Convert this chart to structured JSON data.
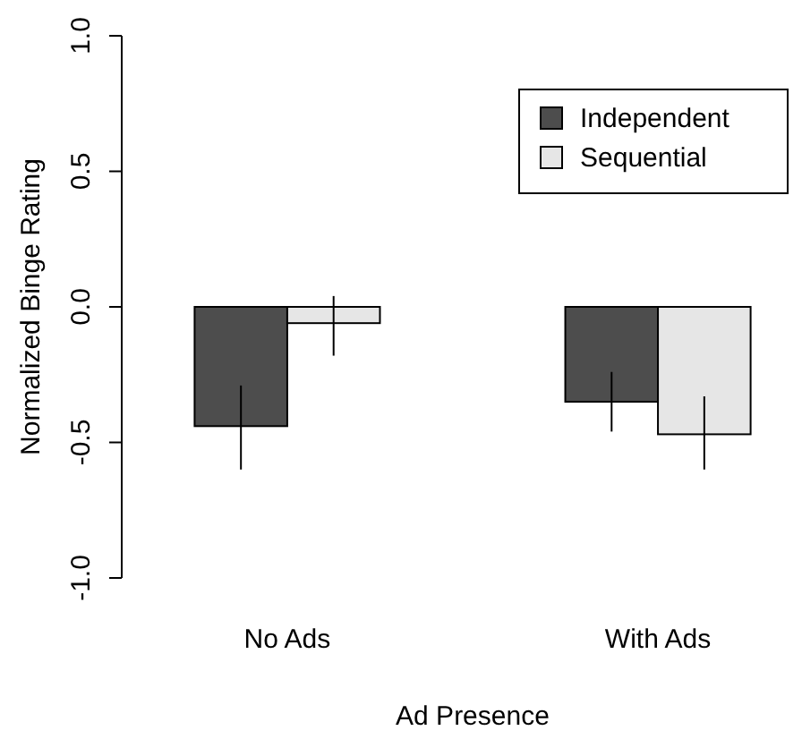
{
  "chart_data": {
    "type": "bar",
    "xlabel": "Ad Presence",
    "ylabel": "Normalized Binge Rating",
    "categories": [
      "No Ads",
      "With Ads"
    ],
    "series": [
      {
        "name": "Independent",
        "color": "#4d4d4d",
        "values": [
          -0.44,
          -0.35
        ],
        "errors": [
          [
            -0.6,
            -0.29
          ],
          [
            -0.46,
            -0.24
          ]
        ]
      },
      {
        "name": "Sequential",
        "color": "#e6e6e6",
        "values": [
          -0.06,
          -0.47
        ],
        "errors": [
          [
            -0.18,
            0.04
          ],
          [
            -0.6,
            -0.33
          ]
        ]
      }
    ],
    "ylim": [
      -1,
      1
    ],
    "yticks": [
      {
        "value": -1,
        "label": "-1.0"
      },
      {
        "value": -0.5,
        "label": "-0.5"
      },
      {
        "value": 0,
        "label": "0.0"
      },
      {
        "value": 0.5,
        "label": "0.5"
      },
      {
        "value": 1,
        "label": "1.0"
      }
    ],
    "legend": "top right",
    "grid": false
  }
}
